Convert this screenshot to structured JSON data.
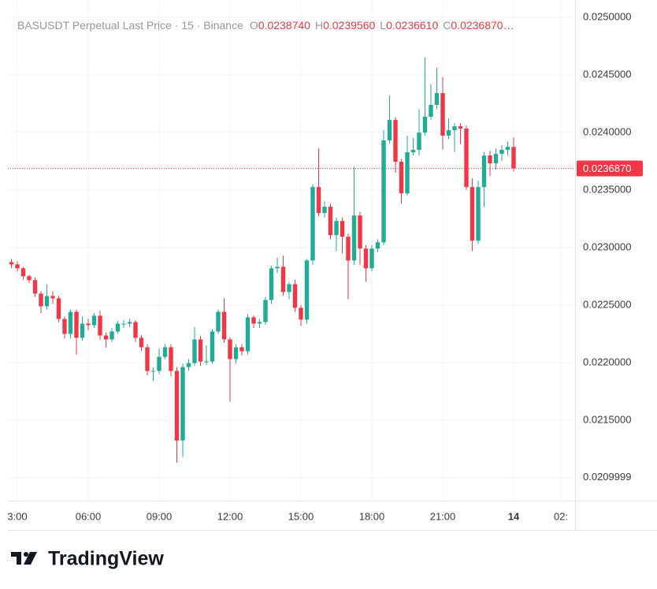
{
  "chart_data": {
    "type": "candlestick",
    "title": "BASUSDT Perpetual Last Price · 15 · Binance",
    "legend": [
      {
        "key": "O",
        "value": "0.0238740"
      },
      {
        "key": "H",
        "value": "0.0239560"
      },
      {
        "key": "L",
        "value": "0.0236610"
      },
      {
        "key": "C",
        "value": "0.0236870…"
      }
    ],
    "brand": "TradingView",
    "up_color": "#22ab94",
    "down_color": "#f23645",
    "grid": true,
    "last_price": {
      "value": 0.023687,
      "label": "0.0236870"
    },
    "xlim": [
      2.6,
      26.6
    ],
    "xticks": [
      {
        "value": 3,
        "label": "3:00"
      },
      {
        "value": 6,
        "label": "06:00"
      },
      {
        "value": 9,
        "label": "09:00"
      },
      {
        "value": 12,
        "label": "12:00"
      },
      {
        "value": 15,
        "label": "15:00"
      },
      {
        "value": 18,
        "label": "18:00"
      },
      {
        "value": 21,
        "label": "21:00"
      },
      {
        "value": 24,
        "label": "14"
      },
      {
        "value": 26,
        "label": "02:"
      }
    ],
    "ylim": [
      0.0208,
      0.02515
    ],
    "yticks": [
      {
        "value": 0.025,
        "label": "0.0250000"
      },
      {
        "value": 0.0245,
        "label": "0.0245000"
      },
      {
        "value": 0.024,
        "label": "0.0240000"
      },
      {
        "value": 0.0235,
        "label": "0.0235000"
      },
      {
        "value": 0.023,
        "label": "0.0230000"
      },
      {
        "value": 0.0225,
        "label": "0.0225000"
      },
      {
        "value": 0.022,
        "label": "0.0220000"
      },
      {
        "value": 0.0215,
        "label": "0.0215000"
      },
      {
        "value": 0.021,
        "label": "0.0209999"
      }
    ],
    "x": [
      2.75,
      3,
      3.25,
      3.5,
      3.75,
      4,
      4.25,
      4.5,
      4.75,
      5,
      5.25,
      5.5,
      5.75,
      6,
      6.25,
      6.5,
      6.75,
      7,
      7.25,
      7.5,
      7.75,
      8,
      8.25,
      8.5,
      8.75,
      9,
      9.25,
      9.5,
      9.75,
      10,
      10.25,
      10.5,
      10.75,
      11,
      11.25,
      11.5,
      11.75,
      12,
      12.25,
      12.5,
      12.75,
      13,
      13.25,
      13.5,
      13.75,
      14,
      14.25,
      14.5,
      14.75,
      15,
      15.25,
      15.5,
      15.75,
      16,
      16.25,
      16.5,
      16.75,
      17,
      17.25,
      17.5,
      17.75,
      18,
      18.25,
      18.5,
      18.75,
      19,
      19.25,
      19.5,
      19.75,
      20,
      20.25,
      20.5,
      20.75,
      21,
      21.25,
      21.5,
      21.75,
      22,
      22.25,
      22.5,
      22.75,
      23,
      23.25,
      23.5,
      23.75,
      24
    ],
    "open": [
      0.022873,
      0.022853,
      0.022819,
      0.02275,
      0.022716,
      0.022599,
      0.022489,
      0.022578,
      0.022558,
      0.022379,
      0.022249,
      0.022441,
      0.022215,
      0.022338,
      0.022325,
      0.022407,
      0.022235,
      0.022201,
      0.02227,
      0.022338,
      0.022338,
      0.022352,
      0.022215,
      0.022133,
      0.021927,
      0.021927,
      0.02205,
      0.022133,
      0.021927,
      0.021323,
      0.021961,
      0.021995,
      0.022201,
      0.022009,
      0.022009,
      0.02227,
      0.022441,
      0.022201,
      0.02203,
      0.022133,
      0.022098,
      0.022393,
      0.022338,
      0.022352,
      0.022544,
      0.022819,
      0.022832,
      0.022613,
      0.022681,
      0.022476,
      0.022373,
      0.022887,
      0.023525,
      0.023299,
      0.023354,
      0.023107,
      0.02323,
      0.023093,
      0.022887,
      0.023278,
      0.02299,
      0.022819,
      0.02299,
      0.023045,
      0.02393,
      0.024108,
      0.023745,
      0.02347,
      0.023827,
      0.023848,
      0.023998,
      0.024136,
      0.024239,
      0.024341,
      0.023971,
      0.024019,
      0.024053,
      0.024033,
      0.023525,
      0.023059,
      0.023525,
      0.023799,
      0.023731,
      0.023813,
      0.023848,
      0.023874
    ],
    "high": [
      0.0229,
      0.02288,
      0.02283,
      0.02276,
      0.02274,
      0.02262,
      0.02268,
      0.02262,
      0.02258,
      0.0224,
      0.02246,
      0.02246,
      0.0224,
      0.02238,
      0.02243,
      0.02245,
      0.02226,
      0.0223,
      0.02236,
      0.02237,
      0.02238,
      0.02237,
      0.02224,
      0.02216,
      0.02196,
      0.02212,
      0.02216,
      0.02216,
      0.02196,
      0.02199,
      0.02203,
      0.02231,
      0.02223,
      0.02215,
      0.02229,
      0.02246,
      0.02256,
      0.02222,
      0.02216,
      0.02216,
      0.02242,
      0.02241,
      0.02238,
      0.02257,
      0.02284,
      0.02291,
      0.02293,
      0.0227,
      0.02272,
      0.0225,
      0.0229,
      0.02355,
      0.02386,
      0.0234,
      0.02338,
      0.02326,
      0.02326,
      0.02312,
      0.0237,
      0.02331,
      0.02302,
      0.02302,
      0.02307,
      0.02402,
      0.02432,
      0.02413,
      0.02377,
      0.02397,
      0.02395,
      0.0242,
      0.02465,
      0.02442,
      0.02456,
      0.02448,
      0.02412,
      0.02408,
      0.02408,
      0.02406,
      0.0236,
      0.02358,
      0.02383,
      0.02384,
      0.02386,
      0.02389,
      0.02392,
      0.023956
    ],
    "low": [
      0.02282,
      0.02279,
      0.02272,
      0.02269,
      0.02257,
      0.02243,
      0.02246,
      0.02251,
      0.02235,
      0.02221,
      0.02221,
      0.02207,
      0.02219,
      0.02228,
      0.0223,
      0.0222,
      0.02213,
      0.02218,
      0.02225,
      0.0223,
      0.02231,
      0.02218,
      0.0221,
      0.02189,
      0.02184,
      0.0219,
      0.02203,
      0.02188,
      0.02113,
      0.02118,
      0.02193,
      0.02197,
      0.02197,
      0.02198,
      0.02199,
      0.02225,
      0.02217,
      0.02166,
      0.02199,
      0.02206,
      0.02207,
      0.0223,
      0.0223,
      0.02233,
      0.02251,
      0.02278,
      0.02258,
      0.02255,
      0.02244,
      0.02232,
      0.02234,
      0.02285,
      0.02327,
      0.02326,
      0.02307,
      0.02297,
      0.02295,
      0.02255,
      0.02285,
      0.02285,
      0.0227,
      0.02279,
      0.02296,
      0.02302,
      0.0239,
      0.02365,
      0.02338,
      0.02345,
      0.0238,
      0.0238,
      0.02397,
      0.02411,
      0.0242,
      0.02385,
      0.02394,
      0.02383,
      0.0239,
      0.0235,
      0.02297,
      0.02303,
      0.02335,
      0.02362,
      0.02368,
      0.02375,
      0.0238,
      0.023661
    ],
    "close": [
      0.022853,
      0.022819,
      0.02275,
      0.022716,
      0.022599,
      0.022489,
      0.022578,
      0.022558,
      0.022379,
      0.022249,
      0.022441,
      0.022215,
      0.022338,
      0.022325,
      0.022407,
      0.022235,
      0.022201,
      0.02227,
      0.022338,
      0.022338,
      0.022352,
      0.022215,
      0.022133,
      0.021927,
      0.021927,
      0.02205,
      0.022133,
      0.021927,
      0.021323,
      0.021961,
      0.021995,
      0.022201,
      0.022009,
      0.022009,
      0.02227,
      0.022441,
      0.022201,
      0.02203,
      0.022133,
      0.022098,
      0.022393,
      0.022338,
      0.022352,
      0.022544,
      0.022819,
      0.022832,
      0.022613,
      0.022681,
      0.022476,
      0.022373,
      0.022887,
      0.023525,
      0.023299,
      0.023354,
      0.023107,
      0.02323,
      0.023093,
      0.022887,
      0.023278,
      0.02299,
      0.022819,
      0.02299,
      0.023045,
      0.02393,
      0.024108,
      0.023745,
      0.02347,
      0.023827,
      0.023848,
      0.023998,
      0.024136,
      0.024239,
      0.024341,
      0.023971,
      0.024019,
      0.024053,
      0.024033,
      0.023525,
      0.023059,
      0.023525,
      0.023799,
      0.023731,
      0.023813,
      0.023848,
      0.023874,
      0.023687
    ]
  }
}
